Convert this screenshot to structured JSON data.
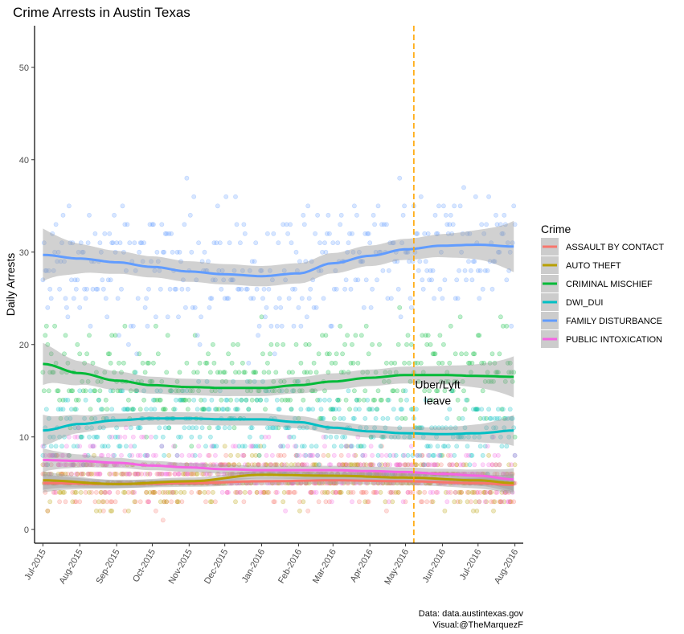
{
  "chart_data": {
    "type": "scatter",
    "title": "Crime Arrests in Austin Texas",
    "ylabel": "Daily Arrests",
    "xlabel": "",
    "x_type": "date",
    "xlim": [
      "2015-06-24",
      "2016-08-08"
    ],
    "ylim": [
      -1.5,
      54.5
    ],
    "y_ticks": [
      0,
      10,
      20,
      30,
      40,
      50
    ],
    "x_ticks": [
      "2015-07-01",
      "2015-08-01",
      "2015-09-01",
      "2015-10-01",
      "2015-11-01",
      "2015-12-01",
      "2016-01-01",
      "2016-02-01",
      "2016-03-01",
      "2016-04-01",
      "2016-05-01",
      "2016-06-01",
      "2016-07-01",
      "2016-08-01"
    ],
    "x_tick_labels": [
      "Jul-2015",
      "Aug-2015",
      "Sep-2015",
      "Oct-2015",
      "Nov-2015",
      "Dec-2015",
      "Jan-2016",
      "Feb-2016",
      "Mar-2016",
      "Apr-2016",
      "May-2016",
      "Jun-2016",
      "Jul-2016",
      "Aug-2016"
    ],
    "grid": false,
    "legend": {
      "title": "Crime",
      "position": "right",
      "entries": [
        "ASSAULT BY CONTACT",
        "AUTO THEFT",
        "CRIMINAL MISCHIEF",
        "DWI_DUI",
        "FAMILY DISTURBANCE",
        "PUBLIC INTOXICATION"
      ]
    },
    "series": [
      {
        "name": "ASSAULT BY CONTACT",
        "color": "#F8766D",
        "mean": 5,
        "spread": 1.8,
        "smooth": [
          [
            "2015-07-01",
            5.0
          ],
          [
            "2015-09-01",
            4.9
          ],
          [
            "2015-11-01",
            5.0
          ],
          [
            "2016-01-01",
            5.2
          ],
          [
            "2016-03-01",
            5.3
          ],
          [
            "2016-05-01",
            5.2
          ],
          [
            "2016-07-01",
            5.0
          ],
          [
            "2016-08-01",
            4.8
          ]
        ]
      },
      {
        "name": "AUTO THEFT",
        "color": "#B79F00",
        "mean": 5.5,
        "spread": 1.8,
        "smooth": [
          [
            "2015-07-01",
            5.3
          ],
          [
            "2015-09-01",
            4.9
          ],
          [
            "2015-11-01",
            5.2
          ],
          [
            "2016-01-01",
            5.9
          ],
          [
            "2016-03-01",
            5.8
          ],
          [
            "2016-05-01",
            5.6
          ],
          [
            "2016-07-01",
            5.3
          ],
          [
            "2016-08-01",
            5.0
          ]
        ]
      },
      {
        "name": "CRIMINAL MISCHIEF",
        "color": "#00BA38",
        "mean": 16,
        "spread": 4,
        "smooth": [
          [
            "2015-07-01",
            17.9
          ],
          [
            "2015-08-01",
            16.9
          ],
          [
            "2015-09-01",
            16.1
          ],
          [
            "2015-10-01",
            15.6
          ],
          [
            "2015-11-01",
            15.4
          ],
          [
            "2015-12-01",
            15.3
          ],
          [
            "2016-01-01",
            15.3
          ],
          [
            "2016-02-01",
            15.6
          ],
          [
            "2016-03-01",
            16.0
          ],
          [
            "2016-04-01",
            16.4
          ],
          [
            "2016-05-01",
            16.7
          ],
          [
            "2016-06-01",
            16.7
          ],
          [
            "2016-07-01",
            16.6
          ],
          [
            "2016-08-01",
            16.5
          ]
        ]
      },
      {
        "name": "DWI_DUI",
        "color": "#00BFC4",
        "mean": 11,
        "spread": 3,
        "smooth": [
          [
            "2015-07-01",
            10.7
          ],
          [
            "2015-08-01",
            11.4
          ],
          [
            "2015-09-01",
            11.8
          ],
          [
            "2015-10-01",
            12.0
          ],
          [
            "2015-11-01",
            12.0
          ],
          [
            "2015-12-01",
            11.9
          ],
          [
            "2016-01-01",
            11.9
          ],
          [
            "2016-02-01",
            11.6
          ],
          [
            "2016-03-01",
            11.0
          ],
          [
            "2016-04-01",
            10.6
          ],
          [
            "2016-05-01",
            10.4
          ],
          [
            "2016-06-01",
            10.3
          ],
          [
            "2016-07-01",
            10.4
          ],
          [
            "2016-08-01",
            10.7
          ]
        ]
      },
      {
        "name": "FAMILY DISTURBANCE",
        "color": "#619CFF",
        "mean": 30,
        "spread": 5,
        "smooth": [
          [
            "2015-07-01",
            29.7
          ],
          [
            "2015-08-01",
            29.3
          ],
          [
            "2015-09-01",
            28.9
          ],
          [
            "2015-10-01",
            28.4
          ],
          [
            "2015-11-01",
            27.9
          ],
          [
            "2015-12-01",
            27.6
          ],
          [
            "2016-01-01",
            27.4
          ],
          [
            "2016-02-01",
            27.7
          ],
          [
            "2016-03-01",
            28.8
          ],
          [
            "2016-04-01",
            29.6
          ],
          [
            "2016-05-01",
            30.3
          ],
          [
            "2016-06-01",
            30.7
          ],
          [
            "2016-07-01",
            30.8
          ],
          [
            "2016-08-01",
            30.6
          ]
        ]
      },
      {
        "name": "PUBLIC INTOXICATION",
        "color": "#F564E3",
        "mean": 6.5,
        "spread": 2.2,
        "smooth": [
          [
            "2015-07-01",
            7.5
          ],
          [
            "2015-08-01",
            7.4
          ],
          [
            "2015-09-01",
            7.2
          ],
          [
            "2015-10-01",
            6.9
          ],
          [
            "2015-11-01",
            6.7
          ],
          [
            "2015-12-01",
            6.5
          ],
          [
            "2016-01-01",
            6.4
          ],
          [
            "2016-02-01",
            6.4
          ],
          [
            "2016-03-01",
            6.4
          ],
          [
            "2016-04-01",
            6.3
          ],
          [
            "2016-05-01",
            6.2
          ],
          [
            "2016-06-01",
            6.0
          ],
          [
            "2016-07-01",
            5.8
          ],
          [
            "2016-08-01",
            5.4
          ]
        ]
      }
    ],
    "vline": {
      "x": "2016-05-08",
      "color": "#FFA500"
    },
    "annotation": {
      "x": "2016-05-28",
      "y": 15.5,
      "lines": [
        "Uber/Lyft",
        "leave"
      ]
    },
    "caption": [
      "Data: data.austintexas.gov",
      "Visual:@TheMarquezF"
    ]
  }
}
